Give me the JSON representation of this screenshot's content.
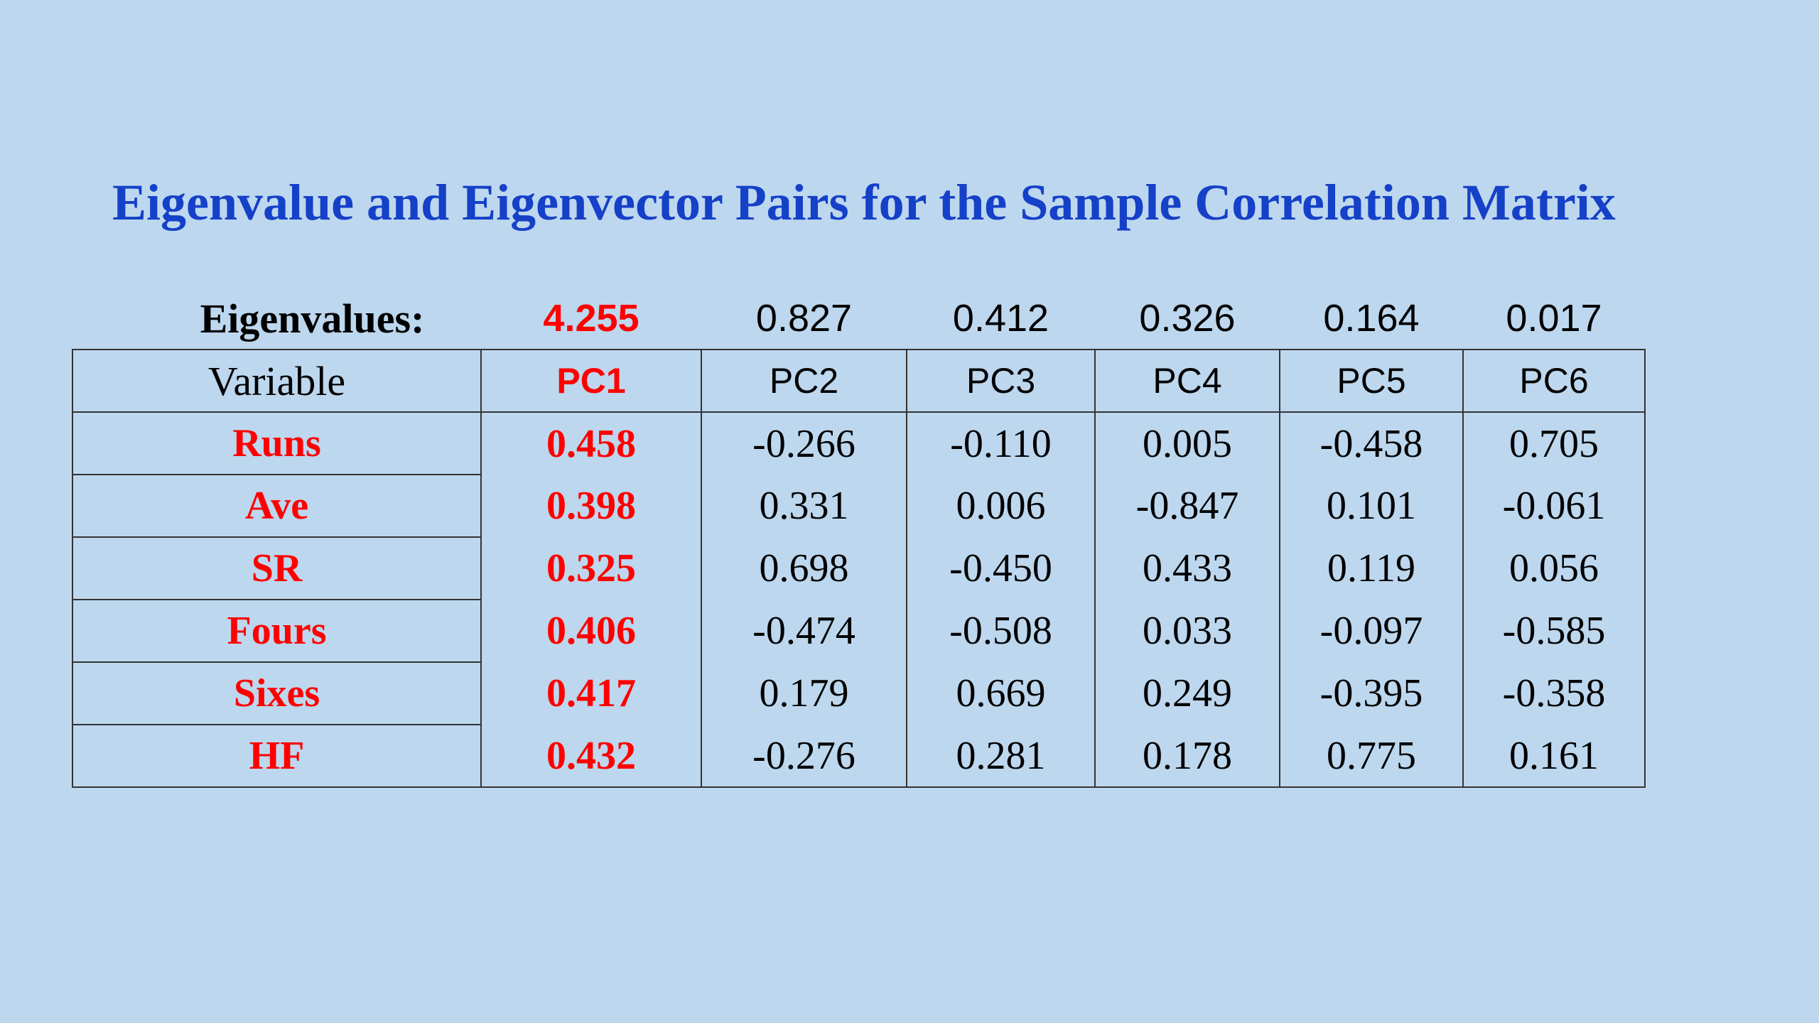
{
  "title": "Eigenvalue and Eigenvector Pairs for the Sample Correlation Matrix",
  "eigenvalues": {
    "label": "Eigenvalues:",
    "values": [
      "4.255",
      "0.827",
      "0.412",
      "0.326",
      "0.164",
      "0.017"
    ]
  },
  "table": {
    "header": [
      "Variable",
      "PC1",
      "PC2",
      "PC3",
      "PC4",
      "PC5",
      "PC6"
    ],
    "rows": [
      [
        "Runs",
        "0.458",
        "-0.266",
        "-0.110",
        "0.005",
        "-0.458",
        "0.705"
      ],
      [
        "Ave",
        "0.398",
        "0.331",
        "0.006",
        "-0.847",
        "0.101",
        "-0.061"
      ],
      [
        "SR",
        "0.325",
        "0.698",
        "-0.450",
        "0.433",
        "0.119",
        "0.056"
      ],
      [
        "Fours",
        "0.406",
        "-0.474",
        "-0.508",
        "0.033",
        "-0.097",
        "-0.585"
      ],
      [
        "Sixes",
        "0.417",
        "0.179",
        "0.669",
        "0.249",
        "-0.395",
        "-0.358"
      ],
      [
        "HF",
        "0.432",
        "-0.276",
        "0.281",
        "0.178",
        "0.775",
        "0.161"
      ]
    ]
  }
}
